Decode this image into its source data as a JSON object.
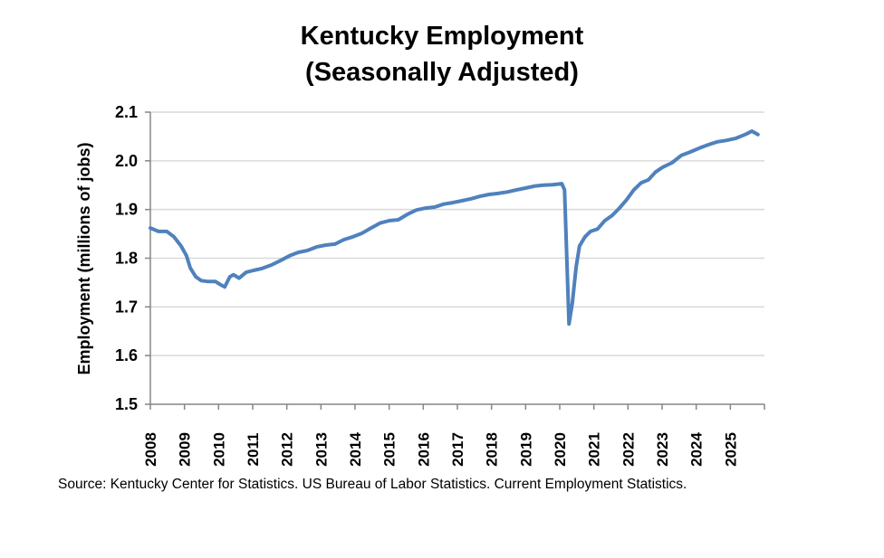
{
  "chart_data": {
    "type": "line",
    "title": "Kentucky Employment",
    "subtitle": "(Seasonally Adjusted)",
    "xlabel": "",
    "ylabel": "Employment (millions of jobs)",
    "xlim": [
      2008,
      2026
    ],
    "ylim": [
      1.5,
      2.1
    ],
    "yticks": [
      "1.5",
      "1.6",
      "1.7",
      "1.8",
      "1.9",
      "2.0",
      "2.1"
    ],
    "ytick_values": [
      1.5,
      1.6,
      1.7,
      1.8,
      1.9,
      2.0,
      2.1
    ],
    "xticks": [
      "2008",
      "2009",
      "2010",
      "2011",
      "2012",
      "2013",
      "2014",
      "2015",
      "2016",
      "2017",
      "2018",
      "2019",
      "2020",
      "2021",
      "2022",
      "2023",
      "2024",
      "2025"
    ],
    "xtick_values": [
      2008,
      2009,
      2010,
      2011,
      2012,
      2013,
      2014,
      2015,
      2016,
      2017,
      2018,
      2019,
      2020,
      2021,
      2022,
      2023,
      2024,
      2025
    ],
    "grid": "horizontal",
    "legend": "none",
    "series": [
      {
        "name": "Kentucky Employment",
        "color": "#4f81bd",
        "x": [
          2008.0,
          2008.24,
          2008.48,
          2008.69,
          2008.9,
          2009.06,
          2009.17,
          2009.33,
          2009.49,
          2009.7,
          2009.91,
          2010.07,
          2010.18,
          2010.33,
          2010.44,
          2010.6,
          2010.81,
          2011.02,
          2011.28,
          2011.55,
          2011.81,
          2012.08,
          2012.34,
          2012.61,
          2012.87,
          2013.14,
          2013.41,
          2013.67,
          2013.94,
          2014.2,
          2014.47,
          2014.73,
          2015.0,
          2015.27,
          2015.53,
          2015.8,
          2016.07,
          2016.33,
          2016.6,
          2016.86,
          2017.13,
          2017.4,
          2017.66,
          2017.93,
          2018.19,
          2018.46,
          2018.72,
          2018.99,
          2019.26,
          2019.52,
          2019.79,
          2020.06,
          2020.14,
          2020.27,
          2020.37,
          2020.48,
          2020.58,
          2020.74,
          2020.9,
          2021.11,
          2021.32,
          2021.54,
          2021.75,
          2021.96,
          2022.17,
          2022.39,
          2022.6,
          2022.81,
          2023.02,
          2023.29,
          2023.56,
          2023.82,
          2024.09,
          2024.35,
          2024.62,
          2024.89,
          2025.15,
          2025.47,
          2025.63,
          2025.81
        ],
        "y": [
          1.862,
          1.855,
          1.855,
          1.844,
          1.825,
          1.805,
          1.78,
          1.762,
          1.754,
          1.752,
          1.752,
          1.745,
          1.741,
          1.762,
          1.766,
          1.759,
          1.771,
          1.775,
          1.779,
          1.786,
          1.795,
          1.805,
          1.812,
          1.816,
          1.823,
          1.827,
          1.829,
          1.838,
          1.844,
          1.851,
          1.862,
          1.872,
          1.877,
          1.879,
          1.89,
          1.899,
          1.903,
          1.905,
          1.911,
          1.914,
          1.918,
          1.922,
          1.927,
          1.931,
          1.933,
          1.936,
          1.94,
          1.944,
          1.948,
          1.95,
          1.951,
          1.953,
          1.94,
          1.665,
          1.708,
          1.782,
          1.825,
          1.844,
          1.855,
          1.86,
          1.877,
          1.888,
          1.903,
          1.92,
          1.94,
          1.955,
          1.961,
          1.977,
          1.987,
          1.996,
          2.011,
          2.018,
          2.026,
          2.033,
          2.039,
          2.042,
          2.046,
          2.055,
          2.061,
          2.054
        ]
      }
    ]
  },
  "source": {
    "text": "Source: Kentucky Center for Statistics. US Bureau of Labor Statistics. Current Employment Statistics."
  },
  "colors": {
    "line": "#4f81bd",
    "grid": "#d9d9d9",
    "axis": "#868686"
  }
}
